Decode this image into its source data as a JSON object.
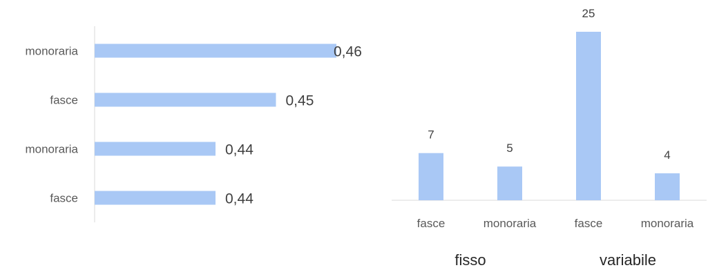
{
  "chart_data": [
    {
      "type": "bar",
      "orientation": "horizontal",
      "categories": [
        "monoraria",
        "fasce",
        "monoraria",
        "fasce"
      ],
      "values": [
        0.46,
        0.45,
        0.44,
        0.44
      ],
      "value_labels": [
        "0,46",
        "0,45",
        "0,44",
        "0,44"
      ],
      "xlim": [
        0.42,
        0.465
      ],
      "bar_color": "#a9c8f5",
      "grid": false
    },
    {
      "type": "bar",
      "orientation": "vertical",
      "categories": [
        "fasce",
        "monoraria",
        "fasce",
        "monoraria"
      ],
      "groups": [
        {
          "label": "fisso",
          "span": [
            0,
            1
          ]
        },
        {
          "label": "variabile",
          "span": [
            2,
            3
          ]
        }
      ],
      "values": [
        7,
        5,
        25,
        4
      ],
      "value_labels": [
        "7",
        "5",
        "25",
        "4"
      ],
      "ylim": [
        0,
        25
      ],
      "bar_color": "#a9c8f5",
      "grid": false
    }
  ]
}
